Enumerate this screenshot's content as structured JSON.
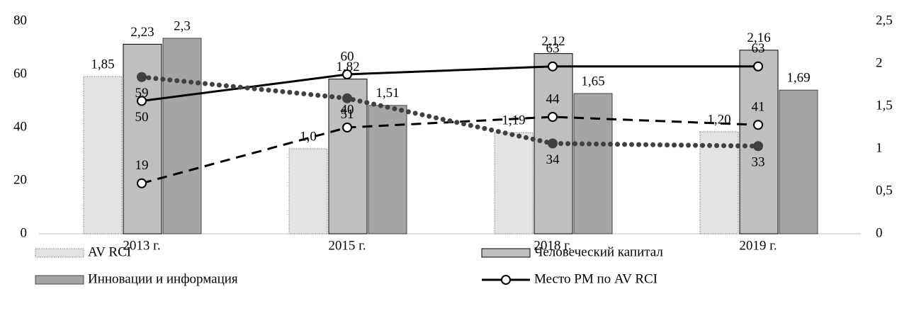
{
  "chart_data": {
    "type": "bar",
    "categories": [
      "2013 г.",
      "2015 г.",
      "2018 г.",
      "2019 г."
    ],
    "ylim": [
      0,
      80
    ],
    "yticks": [
      0,
      20,
      40,
      60,
      80
    ],
    "y2lim": [
      0,
      2.5
    ],
    "y2ticks": [
      0,
      {
        "value": 0.5,
        "label": "0,5"
      },
      1,
      {
        "value": 1.5,
        "label": "1,5"
      },
      2,
      {
        "value": 2.5,
        "label": "2,5"
      }
    ],
    "series": [
      {
        "name": "AV RCI",
        "type": "bar",
        "axis": "y2",
        "color": "#e3e3e3",
        "values": [
          1.85,
          1.0,
          1.19,
          1.2
        ],
        "value_labels": [
          "1,85",
          "1,0",
          "1,19",
          "1,20"
        ]
      },
      {
        "name": "Человеческий капитал",
        "type": "bar",
        "axis": "y2",
        "color": "#bfbfbf",
        "values": [
          2.23,
          1.82,
          2.12,
          2.16
        ],
        "value_labels": [
          "2,23",
          "1,82",
          "2,12",
          "2,16"
        ]
      },
      {
        "name": "Инновации и информация",
        "type": "bar",
        "axis": "y2",
        "color": "#a5a5a5",
        "values": [
          2.3,
          1.51,
          1.65,
          1.69
        ],
        "value_labels": [
          "2,3",
          "1,51",
          "1,65",
          "1,69"
        ]
      },
      {
        "name": "Место РМ по AV RCI",
        "type": "line",
        "color": "#000000",
        "values": [
          50,
          60,
          63,
          63
        ]
      },
      {
        "type": "line",
        "style": "dashed",
        "color": "#000000",
        "values": [
          19,
          40,
          44,
          41
        ]
      },
      {
        "type": "line",
        "style": "dotted",
        "color": "#404040",
        "values": [
          59,
          51,
          34,
          33
        ]
      }
    ]
  }
}
